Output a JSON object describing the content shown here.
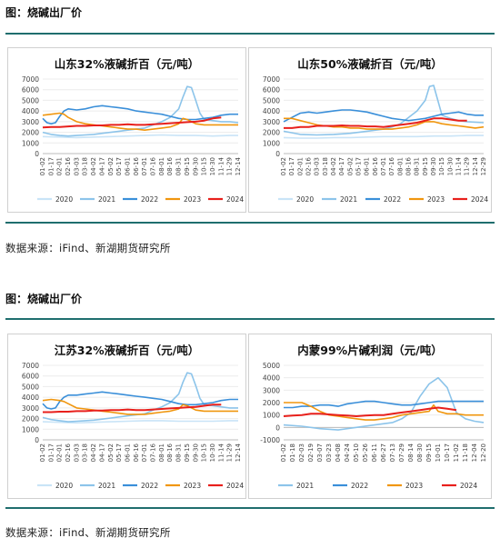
{
  "sections": [
    {
      "title": "图：烧碱出厂价",
      "source": "数据来源：iFind、新湖期货研究所"
    },
    {
      "title": "图：烧碱出厂价",
      "source": "数据来源：iFind、新湖期货研究所"
    }
  ],
  "colors": {
    "2020": "#c9e4f7",
    "2021": "#8cc4ea",
    "2022": "#3a8fd9",
    "2023": "#f0960e",
    "2024": "#e8201c",
    "rule": "#1f6e6e"
  },
  "chart_data": [
    {
      "type": "line",
      "title": "山东32%液碱折百（元/吨）",
      "ylim": [
        0,
        7000
      ],
      "yticks": [
        "0",
        "1000",
        "2000",
        "3000",
        "4000",
        "5000",
        "6000",
        "7000"
      ],
      "xticks": [
        "01-02",
        "01-17",
        "02-01",
        "02-16",
        "03-03",
        "03-18",
        "04-02",
        "04-17",
        "05-02",
        "05-17",
        "06-01",
        "06-16",
        "07-01",
        "07-16",
        "08-01",
        "08-16",
        "08-31",
        "09-15",
        "09-30",
        "10-15",
        "10-30",
        "11-14",
        "11-29",
        "12-14"
      ],
      "series": [
        {
          "name": "2020",
          "x": [
            0,
            2,
            4,
            6,
            8,
            10,
            12,
            14,
            16,
            18,
            20,
            22,
            23
          ],
          "values": [
            1600,
            1550,
            1500,
            1550,
            1600,
            1650,
            1700,
            1750,
            1700,
            1700,
            1650,
            1700,
            1700
          ]
        },
        {
          "name": "2021",
          "x": [
            0,
            1,
            2,
            3,
            4,
            5,
            6,
            7,
            8,
            9,
            10,
            11,
            12,
            13,
            14,
            15,
            16,
            16.5,
            17,
            17.5,
            18,
            18.5,
            19,
            20,
            21,
            22,
            23
          ],
          "values": [
            2000,
            1800,
            1700,
            1650,
            1700,
            1750,
            1800,
            1900,
            2000,
            2100,
            2200,
            2300,
            2400,
            2700,
            3000,
            3400,
            4200,
            5300,
            6300,
            6200,
            5000,
            3800,
            3200,
            3100,
            3000,
            3000,
            2900
          ]
        },
        {
          "name": "2022",
          "x": [
            0,
            0.5,
            1,
            1.5,
            2,
            2.5,
            3,
            4,
            5,
            6,
            7,
            8,
            9,
            10,
            11,
            12,
            13,
            14,
            15,
            16,
            17,
            18,
            19,
            20,
            21,
            22,
            23
          ],
          "values": [
            3300,
            2900,
            2800,
            2900,
            3500,
            4000,
            4200,
            4100,
            4200,
            4400,
            4500,
            4400,
            4300,
            4200,
            4000,
            3900,
            3800,
            3700,
            3500,
            3300,
            3200,
            3200,
            3300,
            3400,
            3600,
            3700,
            3700
          ]
        },
        {
          "name": "2023",
          "x": [
            0,
            1,
            2,
            2.5,
            3,
            4,
            5,
            6,
            7,
            8,
            9,
            10,
            11,
            12,
            13,
            14,
            15,
            16,
            16.5,
            17,
            18,
            19,
            20,
            21,
            22,
            23
          ],
          "values": [
            3600,
            3700,
            3800,
            3700,
            3400,
            3000,
            2800,
            2700,
            2600,
            2500,
            2400,
            2300,
            2300,
            2200,
            2300,
            2400,
            2500,
            2800,
            3300,
            3200,
            2800,
            2700,
            2700,
            2700,
            2700,
            2700
          ]
        },
        {
          "name": "2024",
          "x": [
            0,
            1,
            2,
            3,
            4,
            5,
            6,
            7,
            8,
            9,
            10,
            11,
            12,
            13,
            14,
            15,
            16,
            17,
            18,
            19,
            20,
            21
          ],
          "values": [
            2450,
            2500,
            2500,
            2550,
            2600,
            2600,
            2650,
            2650,
            2700,
            2700,
            2750,
            2700,
            2700,
            2750,
            2800,
            2850,
            2900,
            2950,
            3000,
            3100,
            3300,
            3400
          ]
        }
      ]
    },
    {
      "type": "line",
      "title": "山东50%液碱折百（元/吨）",
      "ylim": [
        0,
        7000
      ],
      "yticks": [
        "0",
        "1000",
        "2000",
        "3000",
        "4000",
        "5000",
        "6000",
        "7000"
      ],
      "xticks": [
        "01-02",
        "01-17",
        "02-01",
        "02-16",
        "03-03",
        "03-18",
        "04-02",
        "04-17",
        "05-02",
        "05-17",
        "06-01",
        "06-16",
        "07-01",
        "07-16",
        "08-01",
        "08-16",
        "08-31",
        "09-15",
        "09-30",
        "10-15",
        "10-30",
        "11-14",
        "11-29",
        "12-14",
        "12-29"
      ],
      "series": [
        {
          "name": "2020",
          "x": [
            0,
            2,
            4,
            6,
            8,
            10,
            12,
            14,
            16,
            18,
            20,
            22,
            24
          ],
          "values": [
            1500,
            1450,
            1450,
            1500,
            1500,
            1550,
            1600,
            1600,
            1600,
            1650,
            1650,
            1700,
            1700
          ]
        },
        {
          "name": "2021",
          "x": [
            0,
            2,
            4,
            6,
            8,
            10,
            12,
            13,
            14,
            15,
            16,
            17,
            17.5,
            18,
            18.5,
            19,
            20,
            21,
            22,
            24
          ],
          "values": [
            2100,
            1800,
            1750,
            1800,
            1900,
            2100,
            2300,
            2500,
            2800,
            3400,
            4000,
            5000,
            6300,
            6400,
            5000,
            3600,
            3300,
            3100,
            3000,
            2900
          ]
        },
        {
          "name": "2022",
          "x": [
            0,
            1,
            2,
            3,
            4,
            5,
            6,
            7,
            8,
            9,
            10,
            11,
            12,
            13,
            14,
            15,
            16,
            17,
            18,
            19,
            20,
            21,
            22,
            23,
            24
          ],
          "values": [
            3000,
            3400,
            3800,
            3900,
            3800,
            3900,
            4000,
            4100,
            4100,
            4000,
            3900,
            3700,
            3500,
            3300,
            3200,
            3100,
            3200,
            3300,
            3500,
            3700,
            3800,
            3900,
            3700,
            3600,
            3600
          ]
        },
        {
          "name": "2023",
          "x": [
            0,
            1,
            2,
            3,
            4,
            5,
            6,
            7,
            8,
            9,
            10,
            11,
            12,
            13,
            14,
            15,
            16,
            17,
            18,
            19,
            20,
            21,
            22,
            23,
            24
          ],
          "values": [
            3300,
            3300,
            3100,
            2900,
            2700,
            2600,
            2500,
            2500,
            2400,
            2400,
            2300,
            2300,
            2300,
            2300,
            2400,
            2500,
            2700,
            3000,
            3000,
            2800,
            2700,
            2600,
            2500,
            2400,
            2500
          ]
        },
        {
          "name": "2024",
          "x": [
            0,
            1,
            2,
            3,
            4,
            5,
            6,
            7,
            8,
            9,
            10,
            11,
            12,
            13,
            14,
            15,
            16,
            17,
            18,
            19,
            20,
            21,
            22
          ],
          "values": [
            2400,
            2400,
            2500,
            2500,
            2600,
            2600,
            2600,
            2650,
            2600,
            2600,
            2550,
            2550,
            2500,
            2600,
            2700,
            2800,
            2900,
            3100,
            3300,
            3300,
            3200,
            3100,
            3100
          ]
        }
      ]
    },
    {
      "type": "line",
      "title": "江苏32%液碱折百（元/吨）",
      "ylim": [
        0,
        7000
      ],
      "yticks": [
        "0",
        "1000",
        "2000",
        "3000",
        "4000",
        "5000",
        "6000",
        "7000"
      ],
      "xticks": [
        "01-02",
        "01-17",
        "02-01",
        "02-16",
        "03-03",
        "03-18",
        "04-02",
        "04-17",
        "05-02",
        "05-17",
        "06-01",
        "06-16",
        "07-01",
        "07-16",
        "08-01",
        "08-16",
        "08-31",
        "09-15",
        "09-30",
        "10-15",
        "10-30",
        "11-14",
        "11-29",
        "12-14"
      ],
      "series": [
        {
          "name": "2020",
          "x": [
            0,
            2,
            4,
            6,
            8,
            10,
            12,
            14,
            16,
            18,
            20,
            22,
            23
          ],
          "values": [
            1700,
            1650,
            1600,
            1650,
            1700,
            1750,
            1800,
            1800,
            1750,
            1750,
            1750,
            1800,
            1800
          ]
        },
        {
          "name": "2021",
          "x": [
            0,
            1,
            2,
            3,
            4,
            5,
            6,
            7,
            8,
            9,
            10,
            11,
            12,
            13,
            14,
            15,
            16,
            16.5,
            17,
            17.5,
            18,
            18.5,
            19,
            20,
            21,
            22,
            23
          ],
          "values": [
            2100,
            1900,
            1800,
            1700,
            1750,
            1800,
            1850,
            1950,
            2050,
            2150,
            2250,
            2350,
            2450,
            2800,
            3100,
            3500,
            4300,
            5400,
            6300,
            6200,
            5100,
            3900,
            3300,
            3200,
            3100,
            3000,
            3000
          ]
        },
        {
          "name": "2022",
          "x": [
            0,
            0.5,
            1,
            1.5,
            2,
            2.5,
            3,
            4,
            5,
            6,
            7,
            8,
            9,
            10,
            11,
            12,
            13,
            14,
            15,
            16,
            17,
            18,
            19,
            20,
            21,
            22,
            23
          ],
          "values": [
            3400,
            3000,
            2900,
            3000,
            3600,
            4000,
            4200,
            4200,
            4300,
            4400,
            4500,
            4400,
            4300,
            4200,
            4100,
            4000,
            3900,
            3800,
            3600,
            3400,
            3300,
            3300,
            3400,
            3500,
            3700,
            3800,
            3800
          ]
        },
        {
          "name": "2023",
          "x": [
            0,
            1,
            2,
            2.5,
            3,
            4,
            5,
            6,
            7,
            8,
            9,
            10,
            11,
            12,
            13,
            14,
            15,
            16,
            16.5,
            17,
            18,
            19,
            20,
            21,
            22,
            23
          ],
          "values": [
            3700,
            3800,
            3700,
            3600,
            3400,
            3000,
            2900,
            2800,
            2700,
            2600,
            2500,
            2400,
            2400,
            2400,
            2500,
            2600,
            2700,
            2900,
            3300,
            3200,
            2800,
            2700,
            2700,
            2700,
            2700,
            2700
          ]
        },
        {
          "name": "2024",
          "x": [
            0,
            1,
            2,
            3,
            4,
            5,
            6,
            7,
            8,
            9,
            10,
            11,
            12,
            13,
            14,
            15,
            16,
            17,
            18,
            19,
            20,
            21
          ],
          "values": [
            2600,
            2600,
            2650,
            2650,
            2700,
            2700,
            2750,
            2750,
            2800,
            2800,
            2850,
            2800,
            2800,
            2850,
            2900,
            2950,
            3000,
            3050,
            3100,
            3200,
            3300,
            3300
          ]
        }
      ]
    },
    {
      "type": "line",
      "title": "内蒙99%片碱利润（元/吨）",
      "ylim": [
        -1000,
        5000
      ],
      "yticks": [
        "-1000",
        "0",
        "1000",
        "2000",
        "3000",
        "4000",
        "5000"
      ],
      "xticks": [
        "01-02",
        "01-18",
        "02-03",
        "02-19",
        "03-07",
        "03-23",
        "04-08",
        "04-24",
        "05-10",
        "05-26",
        "06-11",
        "06-27",
        "07-13",
        "07-29",
        "08-14",
        "08-30",
        "09-15",
        "10-01",
        "10-17",
        "11-02",
        "11-18",
        "12-04",
        "12-20"
      ],
      "series": [
        {
          "name": "2021",
          "x": [
            0,
            2,
            4,
            6,
            8,
            10,
            12,
            13,
            14,
            15,
            16,
            17,
            18,
            19,
            20,
            21,
            22
          ],
          "values": [
            200,
            100,
            -100,
            -200,
            0,
            200,
            400,
            700,
            1200,
            2500,
            3500,
            4000,
            3200,
            1200,
            700,
            500,
            400
          ]
        },
        {
          "name": "2022",
          "x": [
            0,
            1,
            2,
            3,
            4,
            5,
            6,
            7,
            8,
            9,
            10,
            11,
            12,
            13,
            14,
            15,
            16,
            17,
            18,
            19,
            20,
            21,
            22
          ],
          "values": [
            1600,
            1600,
            1700,
            1700,
            1800,
            1800,
            1700,
            1900,
            2000,
            2100,
            2100,
            2000,
            1900,
            1800,
            1800,
            1900,
            2000,
            2100,
            2100,
            2100,
            2100,
            2100,
            2100
          ]
        },
        {
          "name": "2023",
          "x": [
            0,
            1,
            2,
            3,
            4,
            5,
            6,
            7,
            8,
            9,
            10,
            11,
            12,
            13,
            14,
            15,
            16,
            16.5,
            17,
            18,
            19,
            20,
            21,
            22
          ],
          "values": [
            2000,
            2000,
            2000,
            1700,
            1300,
            1000,
            900,
            800,
            700,
            600,
            600,
            700,
            800,
            1000,
            1100,
            1200,
            1300,
            1800,
            1300,
            1100,
            1100,
            1000,
            1000,
            1000
          ]
        },
        {
          "name": "2024",
          "x": [
            0,
            1,
            2,
            3,
            4,
            5,
            6,
            7,
            8,
            9,
            10,
            11,
            12,
            13,
            14,
            15,
            16,
            17,
            18,
            19
          ],
          "values": [
            900,
            950,
            1000,
            1100,
            1100,
            1050,
            1000,
            950,
            900,
            950,
            1000,
            1000,
            1100,
            1200,
            1300,
            1400,
            1500,
            1600,
            1500,
            1400
          ]
        }
      ]
    }
  ]
}
